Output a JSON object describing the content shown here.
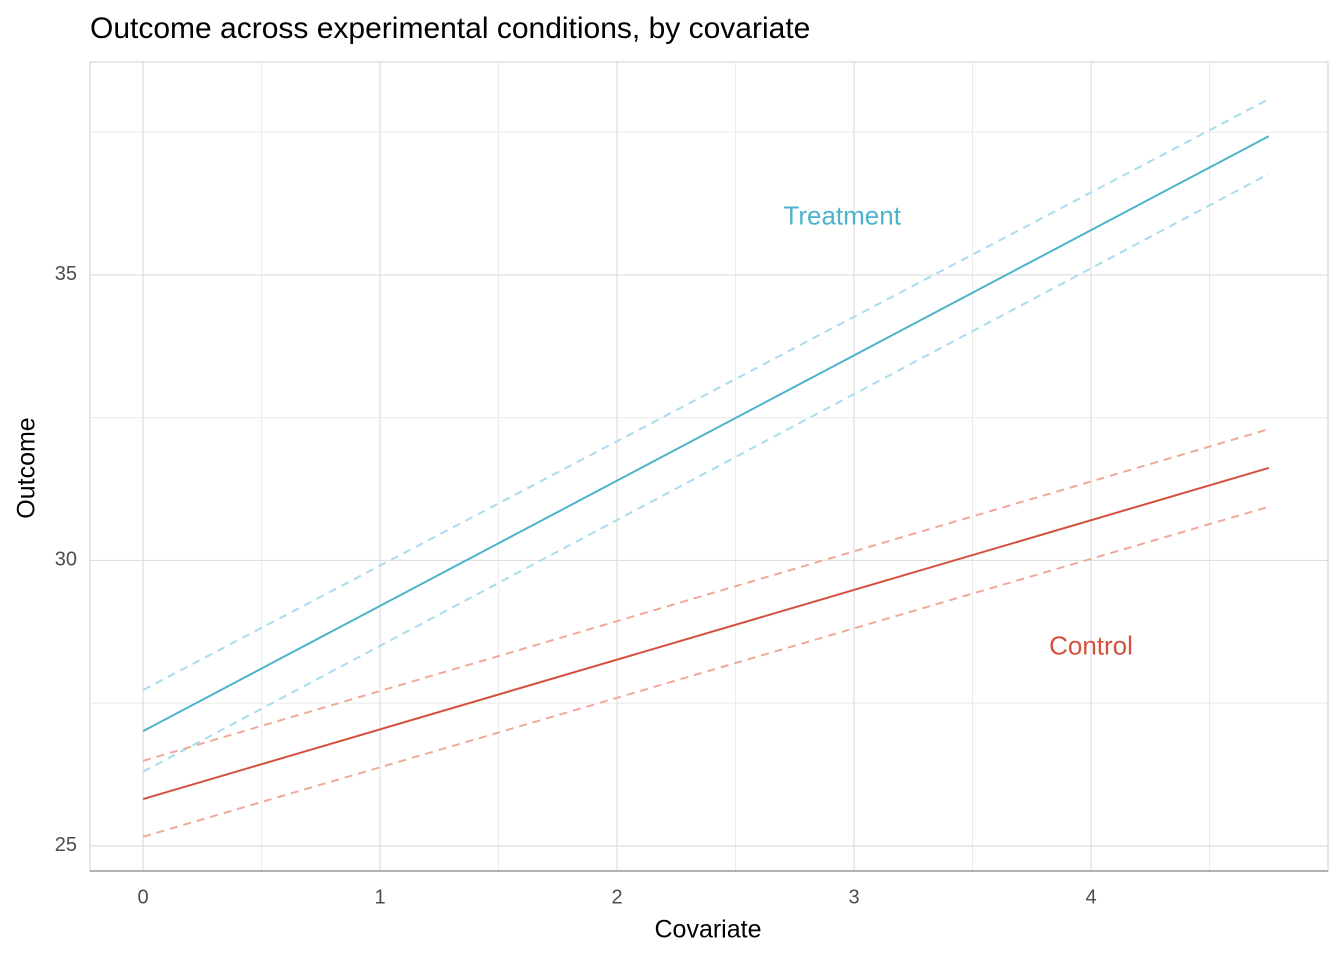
{
  "chart_data": {
    "type": "line",
    "title": "Outcome across experimental conditions, by covariate",
    "x_label": "Covariate",
    "y_label": "Outcome",
    "xlim": [
      -0.224,
      5.0
    ],
    "ylim": [
      24.56,
      38.73
    ],
    "xticks": [
      0,
      1,
      2,
      3,
      4
    ],
    "yticks": [
      25,
      30,
      35
    ],
    "x_minor_grid": [
      0.5,
      1.5,
      2.5,
      3.5,
      4.5
    ],
    "y_minor_grid": [
      27.5,
      32.5,
      37.5
    ],
    "grid": true,
    "series": [
      {
        "color": "#a9dcec",
        "style": "dashed",
        "x": [
          0,
          4.75
        ],
        "values": [
          27.73,
          38.08
        ]
      },
      {
        "color": "#a9dcec",
        "style": "dashed",
        "x": [
          0,
          4.75
        ],
        "values": [
          26.3,
          36.77
        ]
      },
      {
        "color": "#4db3cc",
        "style": "solid",
        "x": [
          0,
          4.75
        ],
        "values": [
          27.01,
          37.43
        ]
      },
      {
        "color": "#f0aa9a",
        "style": "dashed",
        "x": [
          0,
          4.75
        ],
        "values": [
          26.49,
          32.3
        ]
      },
      {
        "color": "#f0aa9a",
        "style": "dashed",
        "x": [
          0,
          4.75
        ],
        "values": [
          25.16,
          30.94
        ]
      },
      {
        "color": "#d4513d",
        "style": "solid",
        "x": [
          0,
          4.75
        ],
        "values": [
          25.82,
          31.62
        ]
      }
    ],
    "annotations": [
      {
        "text": "Treatment",
        "x": 2.95,
        "y": 36.0,
        "color": "#4db3cc"
      },
      {
        "text": "Control",
        "x": 4.0,
        "y": 28.47,
        "color": "#d4513d"
      }
    ]
  }
}
